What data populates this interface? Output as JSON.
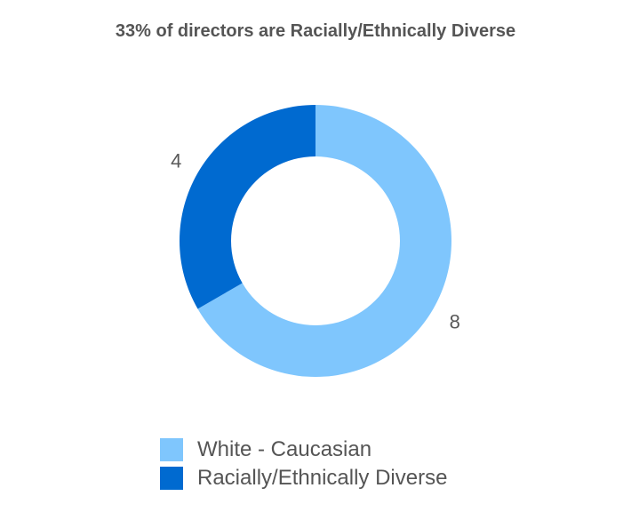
{
  "chart_data": {
    "type": "pie",
    "title": "33% of directors are Racially/Ethnically Diverse",
    "donut": true,
    "slices": [
      {
        "label": "White - Caucasian",
        "value": 8,
        "color": "#7fc6fd"
      },
      {
        "label": "Racially/Ethnically Diverse",
        "value": 4,
        "color": "#006ad0"
      }
    ],
    "data_labels": [
      "8",
      "4"
    ],
    "legend_position": "bottom"
  }
}
